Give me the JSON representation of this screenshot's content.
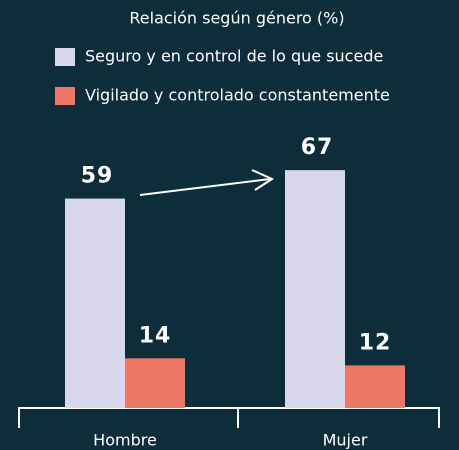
{
  "chart_data": {
    "type": "bar",
    "title": "Relación según género (%)",
    "categories": [
      "Hombre",
      "Mujer"
    ],
    "series": [
      {
        "name": "Seguro y en control de lo que sucede",
        "color": "#d8d7eb",
        "values": [
          59,
          67
        ]
      },
      {
        "name": "Vigilado y controlado constantemente",
        "color": "#ec7764",
        "values": [
          14,
          12
        ]
      }
    ]
  }
}
